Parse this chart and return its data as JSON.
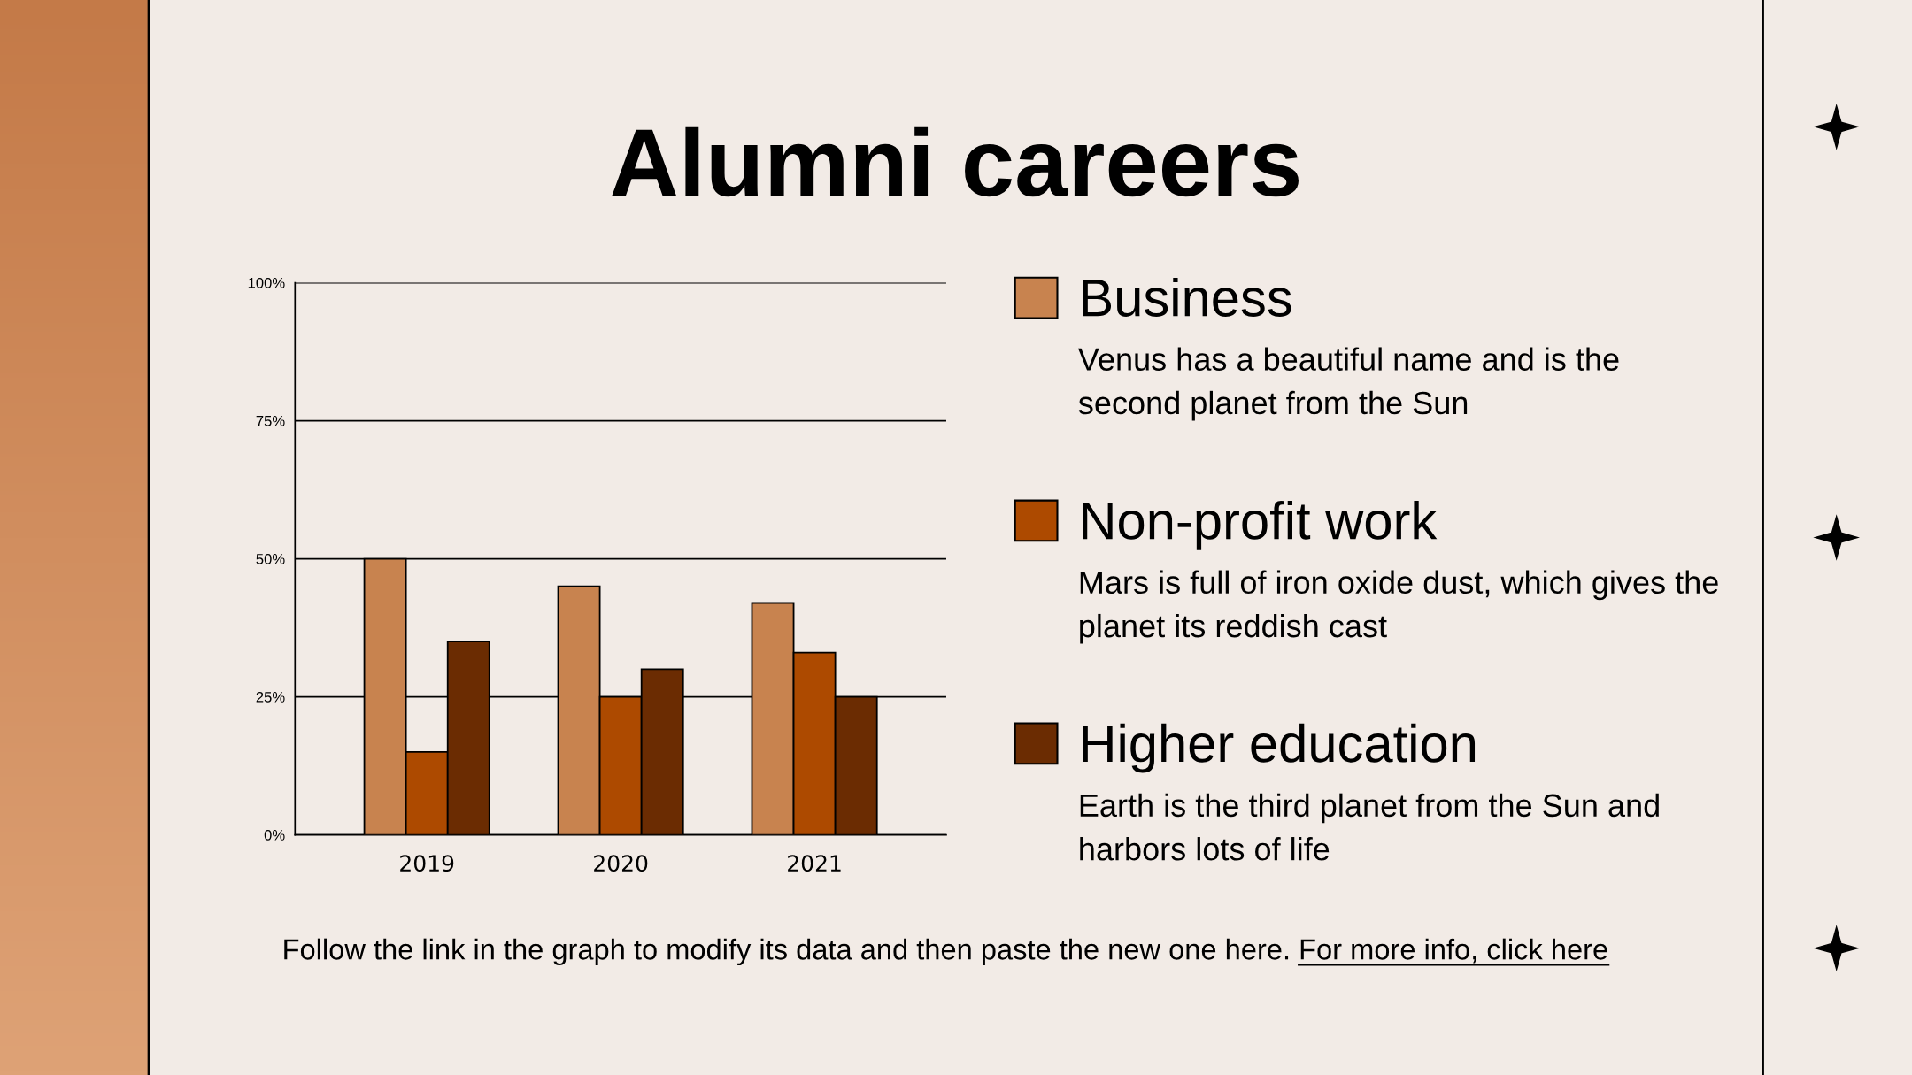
{
  "chart_data": {
    "type": "bar",
    "title": "Alumni careers",
    "categories": [
      "2019",
      "2020",
      "2021"
    ],
    "series": [
      {
        "name": "Business",
        "color": "#c8834f",
        "values": [
          50,
          45,
          42
        ]
      },
      {
        "name": "Non-profit work",
        "color": "#ad4a00",
        "values": [
          15,
          25,
          33
        ]
      },
      {
        "name": "Higher education",
        "color": "#6b2c02",
        "values": [
          35,
          30,
          25
        ]
      }
    ],
    "ylim": [
      0,
      100
    ],
    "yticks": [
      {
        "value": 0,
        "label": "0%"
      },
      {
        "value": 25,
        "label": "25%"
      },
      {
        "value": 50,
        "label": "50%"
      },
      {
        "value": 75,
        "label": "75%"
      },
      {
        "value": 100,
        "label": "100%"
      }
    ],
    "grid": "y",
    "legend": "right",
    "annotations": [
      "Venus has a beautiful name and is the second planet from the Sun",
      "Mars is full of iron oxide dust, which gives the planet its reddish cast",
      "Earth is the third planet from the Sun and harbors lots of life",
      "Follow the link in the graph to modify its data and then paste the new one here.",
      "For more info, click here"
    ]
  }
}
